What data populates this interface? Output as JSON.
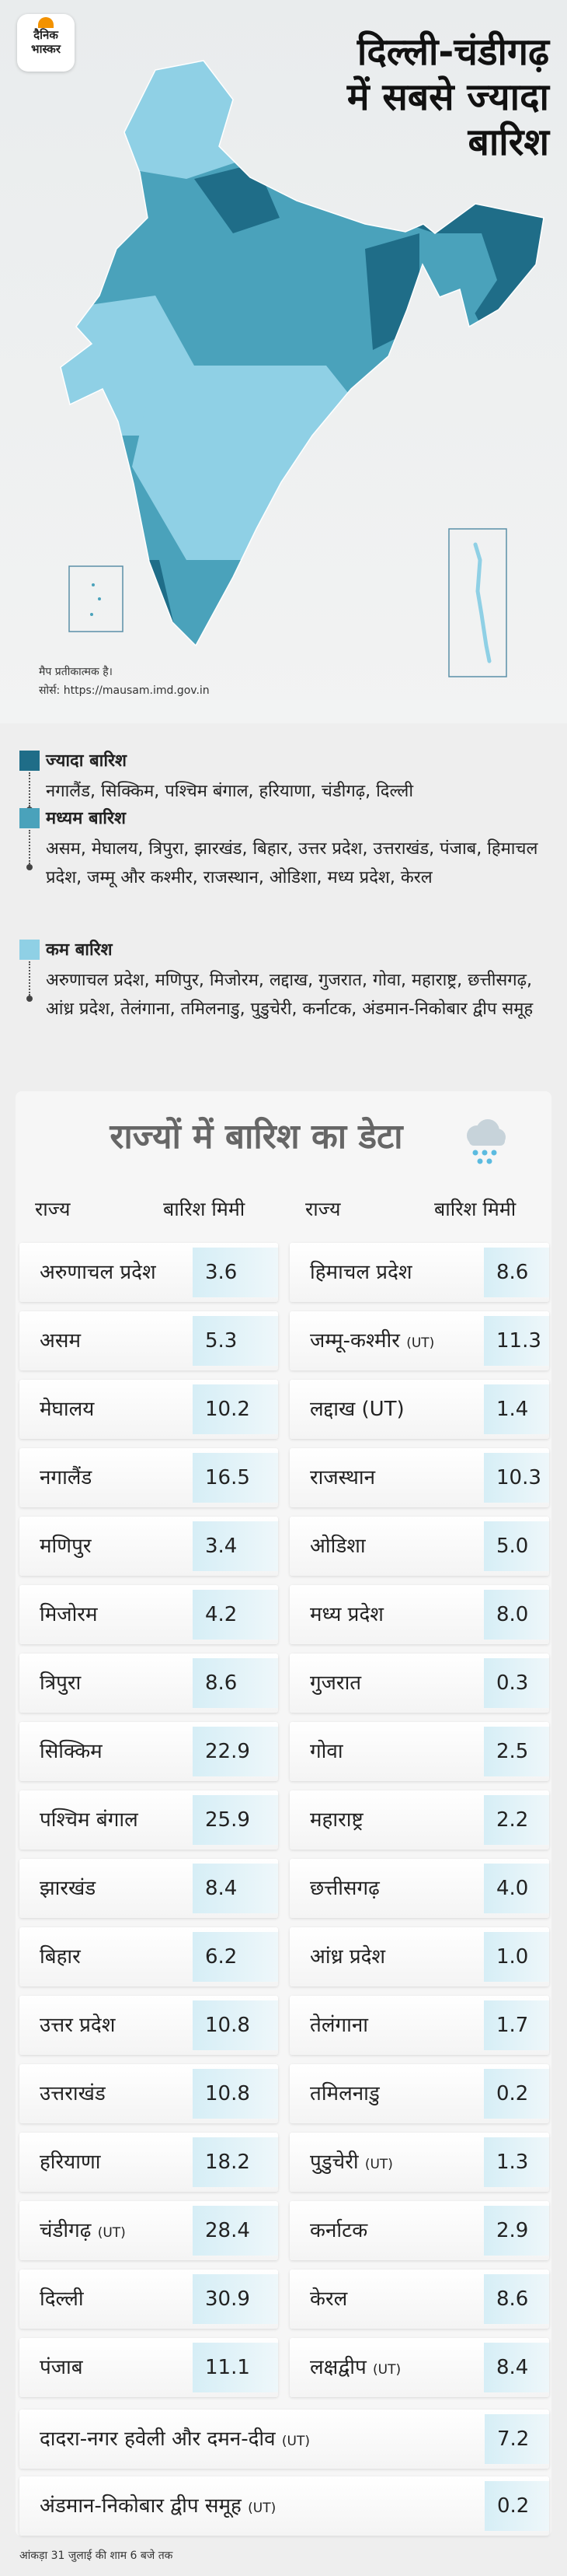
{
  "header": {
    "logo_line1": "दैनिक",
    "logo_line2": "भास्कर",
    "title_lines": [
      "दिल्ली-चंडीगढ़",
      "में सबसे ज्यादा",
      "बारिश"
    ]
  },
  "map": {
    "note": "मैप प्रतीकात्मक है।",
    "source": "सोर्स: https://mausam.imd.gov.in"
  },
  "legend": [
    {
      "label": "ज्यादा बारिश",
      "color": "#1f6d88",
      "states": "नगालैंड, सिक्किम, पश्चिम बंगाल, हरियाणा, चंडीगढ़, दिल्ली"
    },
    {
      "label": "मध्यम बारिश",
      "color": "#4aa2bb",
      "states": "असम, मेघालय, त्रिपुरा, झारखंड, बिहार, उत्तर प्रदेश, उत्तराखंड, पंजाब, हिमाचल प्रदेश, जम्मू और कश्मीर, राजस्थान, ओडिशा, मध्य प्रदेश, केरल"
    },
    {
      "label": "कम बारिश",
      "color": "#8fd0e5",
      "states": "अरुणाचल प्रदेश, मणिपुर, मिजोरम, लद्दाख, गुजरात, गोवा, महाराष्ट्र, छत्तीसगढ़, आंध्र प्रदेश, तेलंगाना, तमिलनाडु, पुडुचेरी, कर्नाटक, अंडमान-निकोबार द्वीप समूह"
    }
  ],
  "table": {
    "title": "राज्यों में बारिश का डेटा",
    "headers": [
      "राज्य",
      "बारिश मिमी"
    ],
    "left": [
      {
        "name": "अरुणाचल प्रदेश",
        "value": "3.6"
      },
      {
        "name": "असम",
        "value": "5.3"
      },
      {
        "name": "मेघालय",
        "value": "10.2"
      },
      {
        "name": "नगालैंड",
        "value": "16.5"
      },
      {
        "name": "मणिपुर",
        "value": "3.4"
      },
      {
        "name": "मिजोरम",
        "value": "4.2"
      },
      {
        "name": "त्रिपुरा",
        "value": "8.6"
      },
      {
        "name": "सिक्किम",
        "value": "22.9"
      },
      {
        "name": "पश्चिम बंगाल",
        "value": "25.9"
      },
      {
        "name": "झारखंड",
        "value": "8.4"
      },
      {
        "name": "बिहार",
        "value": "6.2"
      },
      {
        "name": "उत्तर प्रदेश",
        "value": "10.8"
      },
      {
        "name": "उत्तराखंड",
        "value": "10.8"
      },
      {
        "name": "हरियाणा",
        "value": "18.2"
      },
      {
        "name": "चंडीगढ़",
        "tag": "(UT)",
        "value": "28.4"
      },
      {
        "name": "दिल्ली",
        "value": "30.9"
      },
      {
        "name": "पंजाब",
        "value": "11.1"
      }
    ],
    "right": [
      {
        "name": "हिमाचल प्रदेश",
        "value": "8.6"
      },
      {
        "name": "जम्मू-कश्मीर",
        "tag": "(UT)",
        "value": "11.3"
      },
      {
        "name": "लद्दाख (UT)",
        "value": "1.4"
      },
      {
        "name": "राजस्थान",
        "value": "10.3"
      },
      {
        "name": "ओडिशा",
        "value": "5.0"
      },
      {
        "name": "मध्य प्रदेश",
        "value": "8.0"
      },
      {
        "name": "गुजरात",
        "value": "0.3"
      },
      {
        "name": "गोवा",
        "value": "2.5"
      },
      {
        "name": "महाराष्ट्र",
        "value": "2.2"
      },
      {
        "name": "छत्तीसगढ़",
        "value": "4.0"
      },
      {
        "name": "आंध्र प्रदेश",
        "value": "1.0"
      },
      {
        "name": "तेलंगाना",
        "value": "1.7"
      },
      {
        "name": "तमिलनाडु",
        "value": "0.2"
      },
      {
        "name": "पुडुचेरी",
        "tag": "(UT)",
        "value": "1.3"
      },
      {
        "name": "कर्नाटक",
        "value": "2.9"
      },
      {
        "name": "केरल",
        "value": "8.6"
      },
      {
        "name": "लक्षद्वीप",
        "tag": "(UT)",
        "value": "8.4"
      }
    ],
    "full": [
      {
        "name": "दादरा-नगर हवेली और दमन-दीव",
        "tag": "(UT)",
        "value": "7.2"
      },
      {
        "name": "अंडमान-निकोबार द्वीप समूह",
        "tag": "(UT)",
        "value": "0.2"
      }
    ]
  },
  "footnote": "आंकड़ा 31 जुलाई की शाम 6 बजे तक"
}
